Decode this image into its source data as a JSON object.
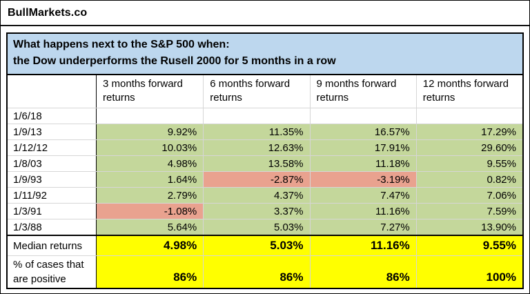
{
  "brand": "BullMarkets.co",
  "title": {
    "line1": "What happens next to the S&P 500 when:",
    "line2": "the Dow underperforms the Rusell 2000 for 5 months in a row"
  },
  "columns": [
    "3 months forward returns",
    "6 months forward returns",
    "9 months forward returns",
    "12 months forward returns"
  ],
  "rows": [
    {
      "date": "1/6/18",
      "v": [
        "",
        "",
        "",
        ""
      ]
    },
    {
      "date": "1/9/13",
      "v": [
        "9.92%",
        "11.35%",
        "16.57%",
        "17.29%"
      ]
    },
    {
      "date": "1/12/12",
      "v": [
        "10.03%",
        "12.63%",
        "17.91%",
        "29.60%"
      ]
    },
    {
      "date": "1/8/03",
      "v": [
        "4.98%",
        "13.58%",
        "11.18%",
        "9.55%"
      ]
    },
    {
      "date": "1/9/93",
      "v": [
        "1.64%",
        "-2.87%",
        "-3.19%",
        "0.82%"
      ]
    },
    {
      "date": "1/11/92",
      "v": [
        "2.79%",
        "4.37%",
        "7.47%",
        "7.06%"
      ]
    },
    {
      "date": "1/3/91",
      "v": [
        "-1.08%",
        "3.37%",
        "11.16%",
        "7.59%"
      ]
    },
    {
      "date": "1/3/88",
      "v": [
        "5.64%",
        "5.03%",
        "7.27%",
        "13.90%"
      ]
    }
  ],
  "median": {
    "label": "Median returns",
    "v": [
      "4.98%",
      "5.03%",
      "11.16%",
      "9.55%"
    ]
  },
  "positive": {
    "label_line1": "% of cases that",
    "label_line2": "are positive",
    "v": [
      "86%",
      "86%",
      "86%",
      "100%"
    ]
  },
  "colors": {
    "header_bg": "#BDD7EE",
    "positive_fill": "#C4D79B",
    "negative_fill": "#E9A28F",
    "summary_fill": "#FFFF00"
  },
  "chart_data": {
    "type": "table",
    "title": "What happens next to the S&P 500 when: the Dow underperforms the Rusell 2000 for 5 months in a row",
    "columns": [
      "",
      "3 months forward returns",
      "6 months forward returns",
      "9 months forward returns",
      "12 months forward returns"
    ],
    "rows": [
      [
        "1/6/18",
        null,
        null,
        null,
        null
      ],
      [
        "1/9/13",
        9.92,
        11.35,
        16.57,
        17.29
      ],
      [
        "1/12/12",
        10.03,
        12.63,
        17.91,
        29.6
      ],
      [
        "1/8/03",
        4.98,
        13.58,
        11.18,
        9.55
      ],
      [
        "1/9/93",
        1.64,
        -2.87,
        -3.19,
        0.82
      ],
      [
        "1/11/92",
        2.79,
        4.37,
        7.47,
        7.06
      ],
      [
        "1/3/91",
        -1.08,
        3.37,
        11.16,
        7.59
      ],
      [
        "1/3/88",
        5.64,
        5.03,
        7.27,
        13.9
      ]
    ],
    "median_returns_pct": [
      4.98,
      5.03,
      11.16,
      9.55
    ],
    "percent_of_cases_positive": [
      86,
      86,
      86,
      100
    ],
    "units": "percent",
    "cell_highlighting": "green = positive return, salmon = negative return, yellow = summary statistics"
  }
}
